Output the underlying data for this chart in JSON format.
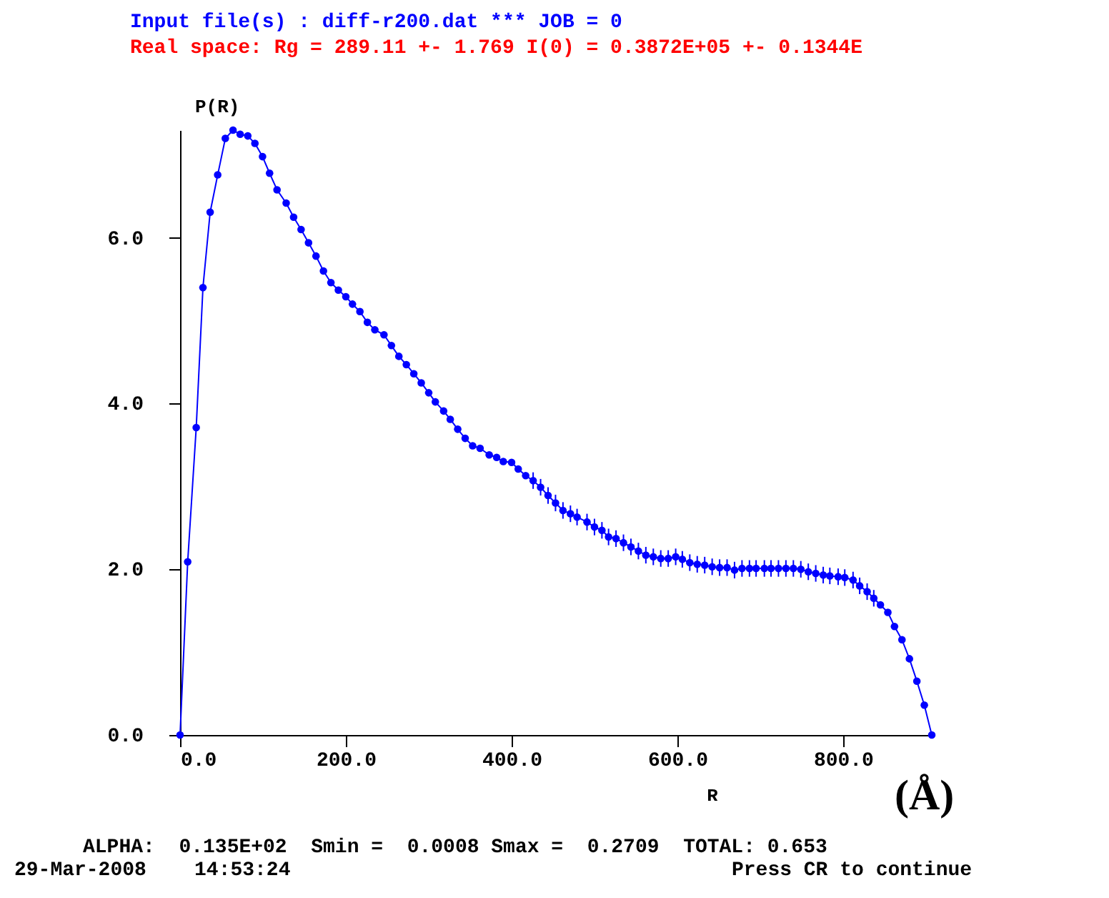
{
  "chart_data": {
    "type": "line",
    "title": "Input file(s) : diff-r200.dat *** JOB = 0",
    "subtitle": "Real space: Rg =  289.11 +- 1.769  I(0) =   0.3872E+05 +-  0.1344E",
    "xlabel": "R",
    "ylabel": "P(R)",
    "annotations": [
      "(Å)",
      "ALPHA:  0.135E+02  Smin =  0.0008 Smax =  0.2709  TOTAL: 0.653",
      "29-Mar-2008    14:53:24",
      "Press CR to continue"
    ],
    "series": [
      {
        "color": "#0000ff",
        "x": [
          0,
          9.2,
          19.5,
          27.6,
          36.3,
          45.4,
          54.6,
          63.9,
          72.5,
          81.7,
          90.3,
          99.5,
          108,
          117,
          128,
          137,
          146,
          155,
          164,
          173,
          182,
          191,
          200,
          208,
          217,
          226,
          235,
          246,
          255,
          264,
          273,
          282,
          291,
          300,
          308,
          318,
          326,
          335,
          344,
          353,
          362,
          373,
          382,
          390,
          400,
          408,
          417,
          426,
          435,
          444,
          453,
          462,
          471,
          479,
          491,
          500,
          509,
          517,
          526,
          535,
          544,
          553,
          562,
          571,
          580,
          589,
          598,
          606,
          615,
          624,
          633,
          642,
          651,
          660,
          669,
          678,
          687,
          695,
          705,
          713,
          722,
          731,
          740,
          749,
          758,
          767,
          776,
          784,
          794,
          802,
          812,
          820,
          829,
          837,
          845,
          854,
          862,
          871,
          880,
          889,
          898,
          907
        ],
        "values": [
          0,
          2.09,
          3.71,
          5.4,
          6.31,
          6.76,
          7.2,
          7.3,
          7.25,
          7.23,
          7.14,
          6.98,
          6.78,
          6.58,
          6.42,
          6.25,
          6.1,
          5.94,
          5.78,
          5.6,
          5.46,
          5.37,
          5.29,
          5.2,
          5.11,
          4.98,
          4.89,
          4.83,
          4.7,
          4.57,
          4.47,
          4.36,
          4.25,
          4.13,
          4.02,
          3.91,
          3.81,
          3.69,
          3.58,
          3.49,
          3.46,
          3.38,
          3.35,
          3.3,
          3.29,
          3.21,
          3.13,
          3.07,
          2.99,
          2.89,
          2.8,
          2.71,
          2.67,
          2.63,
          2.57,
          2.51,
          2.47,
          2.39,
          2.37,
          2.32,
          2.27,
          2.22,
          2.17,
          2.15,
          2.13,
          2.13,
          2.15,
          2.12,
          2.08,
          2.06,
          2.05,
          2.03,
          2.02,
          2.02,
          1.99,
          2.01,
          2.01,
          2.01,
          2.01,
          2.01,
          2.01,
          2.01,
          2.01,
          2,
          1.97,
          1.95,
          1.93,
          1.92,
          1.91,
          1.9,
          1.87,
          1.8,
          1.73,
          1.65,
          1.57,
          1.48,
          1.31,
          1.15,
          0.92,
          0.65,
          0.36,
          0
        ],
        "errors": [
          null,
          null,
          null,
          null,
          null,
          null,
          null,
          null,
          null,
          null,
          null,
          null,
          null,
          null,
          null,
          null,
          null,
          null,
          null,
          null,
          null,
          null,
          null,
          null,
          null,
          null,
          null,
          null,
          null,
          null,
          null,
          null,
          null,
          null,
          null,
          null,
          null,
          null,
          null,
          null,
          null,
          null,
          null,
          null,
          null,
          null,
          null,
          0.1,
          0.1,
          0.1,
          0.1,
          0.1,
          0.1,
          0.1,
          0.1,
          0.1,
          0.1,
          0.1,
          0.1,
          0.1,
          0.1,
          0.1,
          0.1,
          0.1,
          0.1,
          0.1,
          0.1,
          0.1,
          0.1,
          0.1,
          0.1,
          0.1,
          0.1,
          0.1,
          0.1,
          0.1,
          0.1,
          0.1,
          0.1,
          0.1,
          0.1,
          0.1,
          0.1,
          0.1,
          0.1,
          0.1,
          0.1,
          0.1,
          0.1,
          0.1,
          0.1,
          0.1,
          0.1,
          0.1,
          null,
          null,
          null,
          null,
          null,
          null,
          null,
          null
        ]
      }
    ],
    "xlim": [
      0,
      907
    ],
    "xticks": [
      {
        "value": 0,
        "label": "0.0"
      },
      {
        "value": 200,
        "label": "200.0"
      },
      {
        "value": 400,
        "label": "400.0"
      },
      {
        "value": 600,
        "label": "600.0"
      },
      {
        "value": 800,
        "label": "800.0"
      }
    ],
    "ylim": [
      0,
      7.3
    ],
    "yticks": [
      {
        "value": 0,
        "label": "0.0"
      },
      {
        "value": 2,
        "label": "2.0"
      },
      {
        "value": 4,
        "label": "4.0"
      },
      {
        "value": 6,
        "label": "6.0"
      }
    ],
    "grid": false,
    "legend": false,
    "marker": "circle",
    "line_style": "solid"
  }
}
